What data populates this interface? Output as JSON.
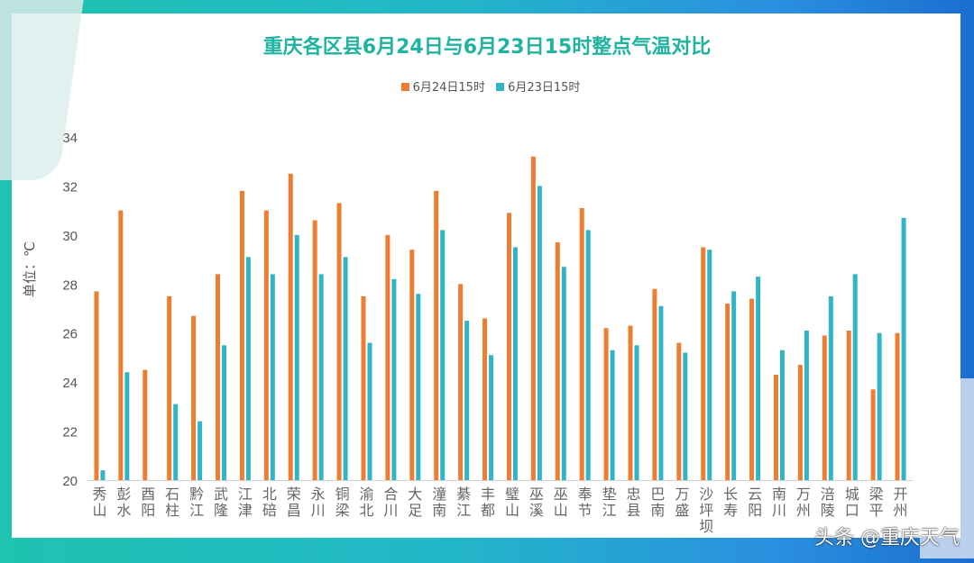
{
  "chart_data": {
    "type": "bar",
    "title": "重庆各区县6月24日与6月23日15时整点气温对比",
    "ylabel": "单位：℃",
    "xlabel": "",
    "ylim": [
      20,
      34
    ],
    "yticks": [
      20,
      22,
      24,
      26,
      28,
      30,
      32,
      34
    ],
    "grid": false,
    "legend": "top",
    "categories": [
      "秀山",
      "彭水",
      "酉阳",
      "石柱",
      "黔江",
      "武隆",
      "江津",
      "北碚",
      "荣昌",
      "永川",
      "铜梁",
      "渝北",
      "合川",
      "大足",
      "潼南",
      "綦江",
      "丰都",
      "璧山",
      "巫溪",
      "巫山",
      "奉节",
      "垫江",
      "忠县",
      "巴南",
      "万盛",
      "沙坪坝",
      "长寿",
      "云阳",
      "南川",
      "万州",
      "涪陵",
      "城口",
      "梁平",
      "开州"
    ],
    "series": [
      {
        "name": "6月24日15时",
        "color": "#ed7d31",
        "values": [
          27.7,
          31.0,
          24.5,
          27.5,
          26.7,
          28.4,
          31.8,
          31.0,
          32.5,
          30.6,
          31.3,
          27.5,
          30.0,
          29.4,
          31.8,
          28.0,
          26.6,
          30.9,
          33.2,
          29.7,
          31.1,
          26.2,
          26.3,
          27.8,
          25.6,
          29.5,
          27.2,
          27.4,
          24.3,
          24.7,
          25.9,
          26.1,
          23.7,
          26.0
        ]
      },
      {
        "name": "6月23日15时",
        "color": "#2fb5c6",
        "values": [
          20.4,
          24.4,
          null,
          23.1,
          22.4,
          25.5,
          29.1,
          28.4,
          30.0,
          28.4,
          29.1,
          25.6,
          28.2,
          27.6,
          30.2,
          26.5,
          25.1,
          29.5,
          32.0,
          28.7,
          30.2,
          25.3,
          25.5,
          27.1,
          25.2,
          29.4,
          27.7,
          28.3,
          25.3,
          26.1,
          27.5,
          28.4,
          26.0,
          30.7
        ]
      }
    ]
  },
  "watermark": "头条 @重庆天气",
  "colors": {
    "title": "#1fb3a0",
    "frame": "#22b8c8"
  }
}
